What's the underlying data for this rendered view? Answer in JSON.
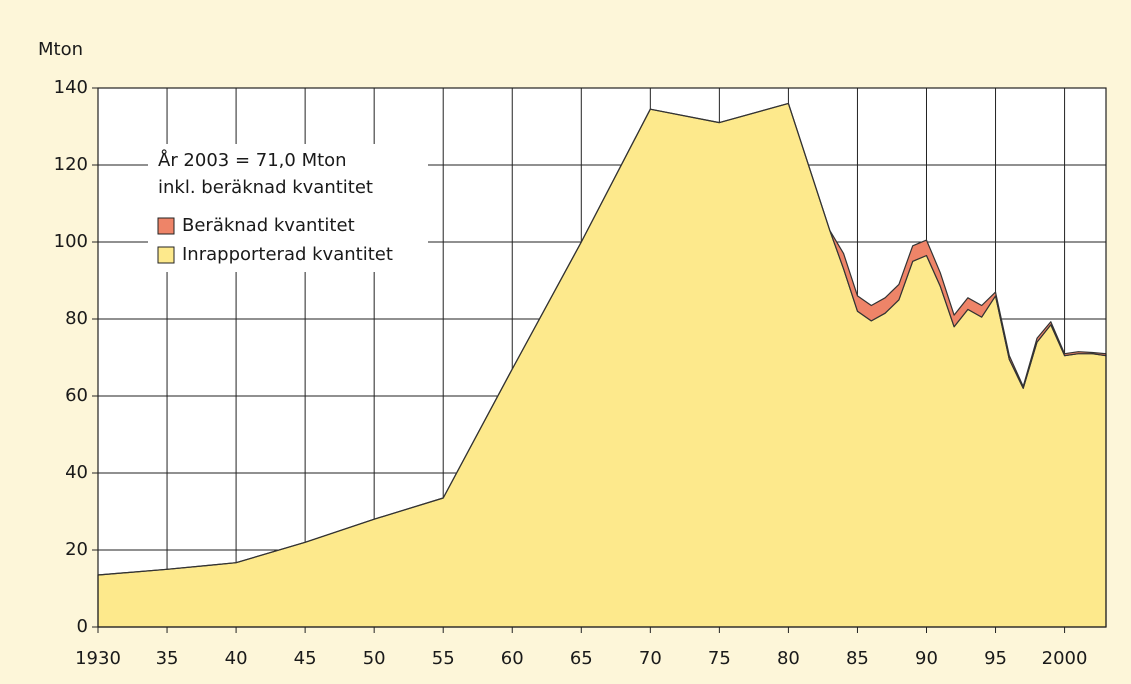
{
  "chart_data": {
    "type": "stacked_area",
    "y_label": "Mton",
    "annotation": [
      "År 2003 = 71,0 Mton",
      "inkl. beräknad kvantitet"
    ],
    "x": [
      1930,
      1935,
      1938,
      1940,
      1945,
      1950,
      1955,
      1960,
      1965,
      1970,
      1975,
      1980,
      1983,
      1984,
      1985,
      1986,
      1987,
      1988,
      1989,
      1990,
      1991,
      1992,
      1993,
      1994,
      1995,
      1996,
      1997,
      1998,
      1999,
      2000,
      2001,
      2002,
      2003
    ],
    "series": [
      {
        "name": "Inrapporterad kvantitet",
        "color": "#fde98c",
        "values": [
          13.5,
          15,
          16,
          16.7,
          22,
          28,
          33.5,
          67,
          100,
          134.5,
          131,
          136,
          103,
          93,
          82,
          79.5,
          81.5,
          85,
          95,
          96.5,
          88.5,
          78,
          82.5,
          80.5,
          86,
          69.5,
          62,
          74,
          78.5,
          70.5,
          71,
          71,
          70.5
        ]
      },
      {
        "name": "Beräknad kvantitet",
        "color": "#ee8468",
        "values": [
          0,
          0,
          0,
          0,
          0,
          0,
          0,
          0,
          0,
          0,
          0,
          0,
          0,
          4,
          4,
          4,
          4,
          4,
          4,
          4,
          3.5,
          3,
          3,
          3,
          1,
          1,
          0.5,
          1,
          0.8,
          0.5,
          0.5,
          0.3,
          0.5
        ]
      }
    ],
    "xlim": [
      1930,
      2003
    ],
    "xticks": [
      1930,
      {
        "value": 1935,
        "label": "35"
      },
      {
        "value": 1940,
        "label": "40"
      },
      {
        "value": 1945,
        "label": "45"
      },
      {
        "value": 1950,
        "label": "50"
      },
      {
        "value": 1955,
        "label": "55"
      },
      {
        "value": 1960,
        "label": "60"
      },
      {
        "value": 1965,
        "label": "65"
      },
      {
        "value": 1970,
        "label": "70"
      },
      {
        "value": 1975,
        "label": "75"
      },
      {
        "value": 1980,
        "label": "80"
      },
      {
        "value": 1985,
        "label": "85"
      },
      {
        "value": 1990,
        "label": "90"
      },
      {
        "value": 1995,
        "label": "95"
      },
      2000
    ],
    "ylim": [
      0,
      140
    ],
    "yticks": [
      0,
      20,
      40,
      60,
      80,
      100,
      120,
      140
    ],
    "grid": true
  }
}
